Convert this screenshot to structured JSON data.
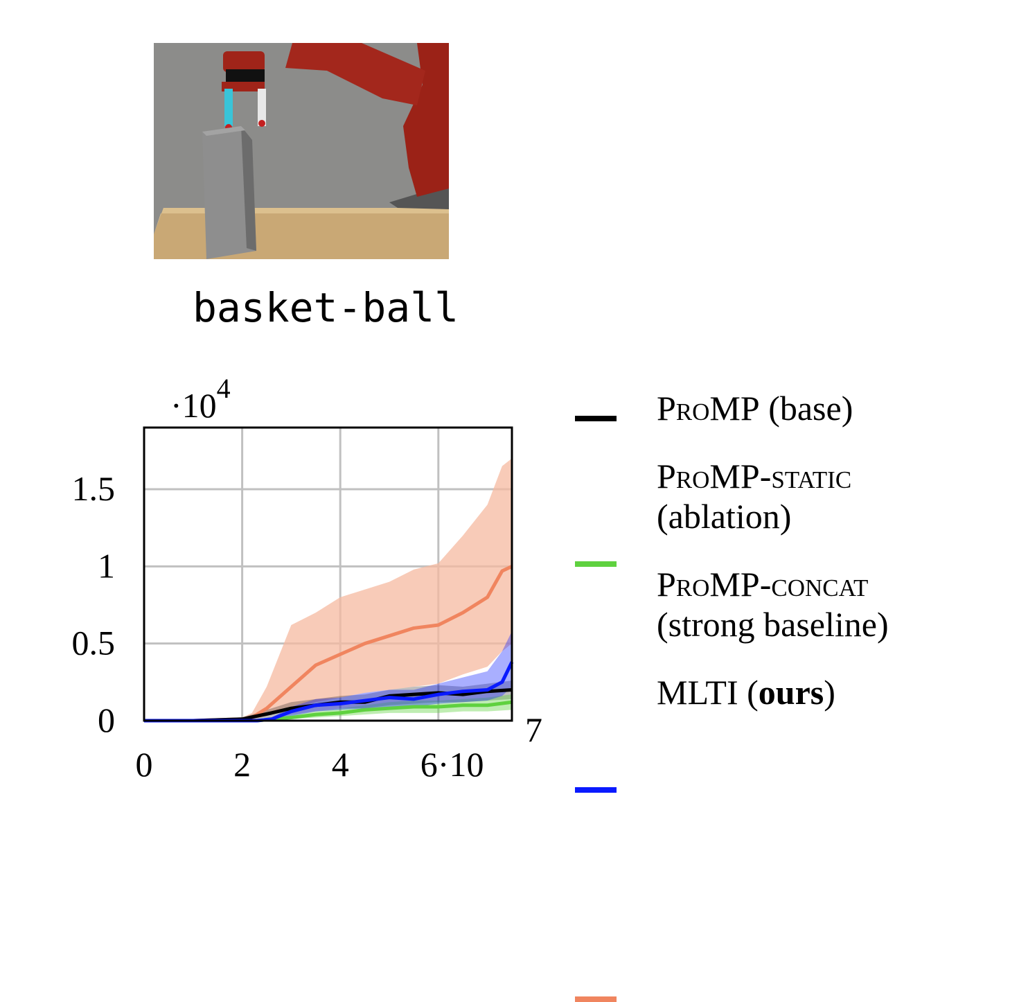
{
  "task": {
    "name": "basket-ball"
  },
  "colors": {
    "promp": "#000000",
    "static": "#5fd13f",
    "concat": "#0a1aff",
    "mlti": "#f0855f",
    "mlti_band": "#f5b9a0"
  },
  "legend": [
    {
      "name": "ProMP",
      "suffix": " (base)"
    },
    {
      "name": "ProMP-static",
      "suffix": "(ablation)"
    },
    {
      "name": "ProMP-concat",
      "suffix": "(strong baseline)"
    },
    {
      "name": "MLTI",
      "paren_open": " (",
      "bold": "ours",
      "paren_close": ")"
    }
  ],
  "chart_data": {
    "type": "line",
    "xlim": [
      0,
      7.5
    ],
    "ylim": [
      0,
      1.9
    ],
    "x_multiplier": "·10⁷",
    "y_multiplier": "·10⁴",
    "x_ticks": [
      "0",
      "2",
      "4",
      "6·10"
    ],
    "x_tick_values": [
      0,
      2,
      4,
      6
    ],
    "x_exponent": "7",
    "y_ticks": [
      "0",
      "0.5",
      "1",
      "1.5"
    ],
    "y_tick_values": [
      0,
      0.5,
      1,
      1.5
    ],
    "y_prefix": "·10",
    "y_exponent": "4",
    "grid": true,
    "series": [
      {
        "name": "ProMP (base)",
        "x": [
          0,
          1,
          2,
          2.3,
          2.6,
          3,
          3.5,
          4,
          4.5,
          5,
          5.5,
          6,
          6.5,
          7,
          7.5
        ],
        "y": [
          0,
          0,
          0.01,
          0.03,
          0.05,
          0.08,
          0.1,
          0.12,
          0.12,
          0.16,
          0.17,
          0.18,
          0.17,
          0.19,
          0.2
        ],
        "lower": [
          0,
          0,
          0,
          0.01,
          0.02,
          0.04,
          0.06,
          0.08,
          0.08,
          0.1,
          0.11,
          0.12,
          0.12,
          0.13,
          0.14
        ],
        "upper": [
          0,
          0,
          0.02,
          0.05,
          0.08,
          0.12,
          0.14,
          0.16,
          0.17,
          0.2,
          0.22,
          0.23,
          0.22,
          0.24,
          0.26
        ]
      },
      {
        "name": "ProMP-static (ablation)",
        "x": [
          0,
          1,
          2,
          2.3,
          2.6,
          3,
          3.5,
          4,
          4.5,
          5,
          5.5,
          6,
          6.5,
          7,
          7.5
        ],
        "y": [
          0,
          0,
          0,
          0,
          0.01,
          0.02,
          0.04,
          0.05,
          0.07,
          0.08,
          0.09,
          0.09,
          0.1,
          0.1,
          0.12
        ],
        "lower": [
          0,
          0,
          0,
          0,
          0,
          0.01,
          0.02,
          0.03,
          0.04,
          0.05,
          0.05,
          0.05,
          0.06,
          0.06,
          0.07
        ],
        "upper": [
          0,
          0,
          0,
          0.01,
          0.02,
          0.04,
          0.06,
          0.08,
          0.1,
          0.12,
          0.13,
          0.13,
          0.14,
          0.15,
          0.17
        ]
      },
      {
        "name": "ProMP-concat (strong baseline)",
        "x": [
          0,
          1,
          2,
          2.3,
          2.6,
          3,
          3.5,
          4,
          4.5,
          5,
          5.5,
          6,
          6.5,
          7,
          7.3,
          7.5
        ],
        "y": [
          0,
          0,
          0,
          0,
          0.01,
          0.06,
          0.1,
          0.11,
          0.13,
          0.15,
          0.14,
          0.17,
          0.19,
          0.2,
          0.25,
          0.38
        ],
        "lower": [
          0,
          0,
          0,
          0,
          0,
          0.03,
          0.06,
          0.07,
          0.08,
          0.09,
          0.09,
          0.11,
          0.12,
          0.13,
          0.16,
          0.22
        ],
        "upper": [
          0,
          0,
          0,
          0.01,
          0.02,
          0.09,
          0.14,
          0.15,
          0.18,
          0.2,
          0.2,
          0.24,
          0.28,
          0.32,
          0.45,
          0.58
        ]
      },
      {
        "name": "MLTI (ours)",
        "x": [
          0,
          1,
          2,
          2.2,
          2.5,
          3,
          3.5,
          4,
          4.5,
          5,
          5.5,
          6,
          6.5,
          7,
          7.3,
          7.5
        ],
        "y": [
          0,
          0,
          0.01,
          0.02,
          0.08,
          0.22,
          0.36,
          0.43,
          0.5,
          0.55,
          0.6,
          0.62,
          0.7,
          0.8,
          0.97,
          1.0
        ],
        "lower": [
          0,
          0,
          0,
          0.01,
          0.03,
          0.08,
          0.12,
          0.15,
          0.18,
          0.2,
          0.22,
          0.24,
          0.3,
          0.35,
          0.45,
          0.5
        ],
        "upper": [
          0,
          0,
          0.02,
          0.05,
          0.22,
          0.62,
          0.7,
          0.8,
          0.85,
          0.9,
          0.98,
          1.02,
          1.2,
          1.4,
          1.65,
          1.7
        ]
      }
    ]
  }
}
